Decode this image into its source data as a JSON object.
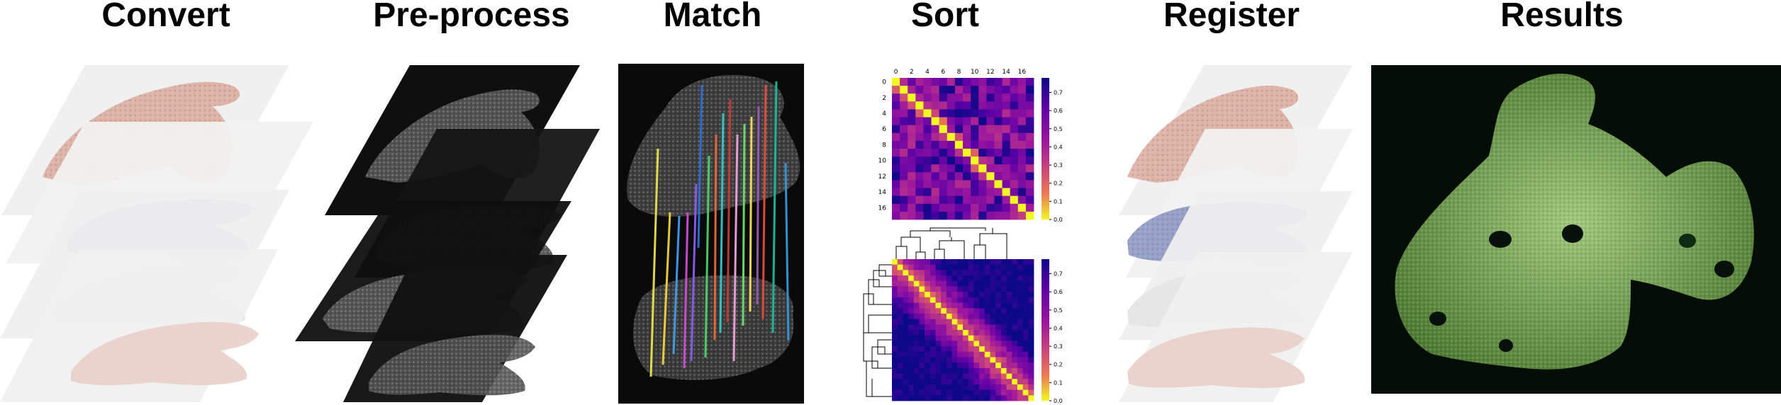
{
  "stages": [
    {
      "id": "convert",
      "title": "Convert"
    },
    {
      "id": "preprocess",
      "title": "Pre-process"
    },
    {
      "id": "match",
      "title": "Match"
    },
    {
      "id": "sort",
      "title": "Sort"
    },
    {
      "id": "register",
      "title": "Register"
    },
    {
      "id": "results",
      "title": "Results"
    }
  ],
  "sort_panel": {
    "heatmap_top": {
      "x_ticks": [
        "0",
        "2",
        "4",
        "6",
        "8",
        "10",
        "12",
        "14",
        "16"
      ],
      "y_ticks": [
        "0",
        "2",
        "4",
        "6",
        "8",
        "10",
        "12",
        "14",
        "16"
      ],
      "colorbar_ticks": [
        "0.0",
        "0.1",
        "0.2",
        "0.3",
        "0.4",
        "0.5",
        "0.6",
        "0.7"
      ],
      "colormap": "plasma_r",
      "matrix_size": 18
    },
    "heatmap_bottom": {
      "colorbar_ticks": [
        "0.0",
        "0.1",
        "0.2",
        "0.3",
        "0.4",
        "0.5",
        "0.6",
        "0.7"
      ],
      "colormap": "plasma_r",
      "dendrograms": [
        "top",
        "left"
      ]
    }
  },
  "colors": {
    "he_stain": "#c98a78",
    "ihc_blue": "#6f7fb0",
    "faint_pink": "#e8d4ce",
    "dark_slide": "#111111",
    "results_green": "#6fa14a",
    "background": "#ffffff"
  }
}
